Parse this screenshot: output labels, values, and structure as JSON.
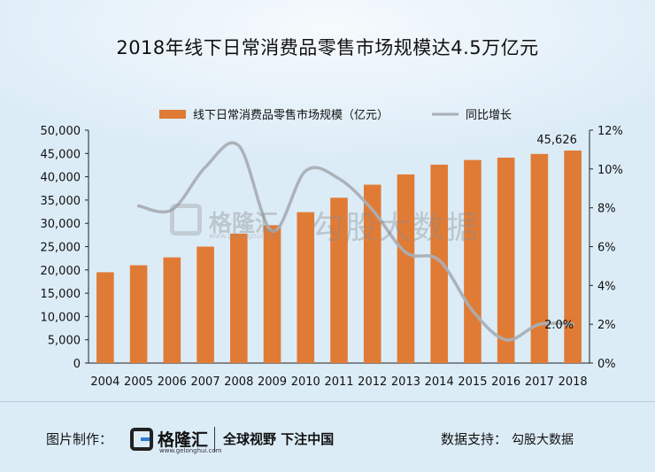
{
  "title": "2018年线下日常消费品零售市场规模达4.5万亿元",
  "colors": {
    "bar": "#e07b36",
    "line": "#a9afb5",
    "background": "#dcecf7"
  },
  "chart_data": {
    "type": "bar+line",
    "categories": [
      "2004",
      "2005",
      "2006",
      "2007",
      "2008",
      "2009",
      "2010",
      "2011",
      "2012",
      "2013",
      "2014",
      "2015",
      "2016",
      "2017",
      "2018"
    ],
    "series": [
      {
        "name": "线下日常消费品零售市场规模（亿元）",
        "type": "bar",
        "axis": "left",
        "values": [
          19500,
          21000,
          22700,
          25000,
          27800,
          29600,
          32400,
          35500,
          38300,
          40500,
          42600,
          43600,
          44100,
          44900,
          45626
        ]
      },
      {
        "name": "同比增长",
        "type": "line",
        "axis": "right",
        "unit": "%",
        "values": [
          null,
          8.1,
          7.9,
          10.1,
          11.2,
          6.8,
          9.9,
          9.5,
          7.9,
          5.7,
          5.3,
          2.7,
          1.2,
          2.0,
          2.0
        ]
      }
    ],
    "left_axis": {
      "ticks": [
        "0",
        "5,000",
        "10,000",
        "15,000",
        "20,000",
        "25,000",
        "30,000",
        "35,000",
        "40,000",
        "45,000",
        "50,000"
      ],
      "ylim": [
        0,
        50000
      ]
    },
    "right_axis": {
      "ticks": [
        "0%",
        "2%",
        "4%",
        "6%",
        "8%",
        "10%",
        "12%"
      ],
      "ylim": [
        0,
        12
      ]
    },
    "annotations": {
      "last_bar_label": "45,626",
      "last_line_label": "2.0%"
    },
    "legend": {
      "position": "top-center",
      "bar_label": "线下日常消费品零售市场规模（亿元）",
      "line_label": "同比增长"
    }
  },
  "watermark": {
    "brand": "格隆汇",
    "sub": "www.gelonghui.com",
    "source": "勾股大数据"
  },
  "footer": {
    "credit_label": "图片制作：",
    "logo_name": "格隆汇",
    "logo_url": "www.gelonghui.com",
    "slogan": "全球视野 下注中国",
    "support_label": "数据支持：",
    "support_name": "勾股大数据"
  }
}
